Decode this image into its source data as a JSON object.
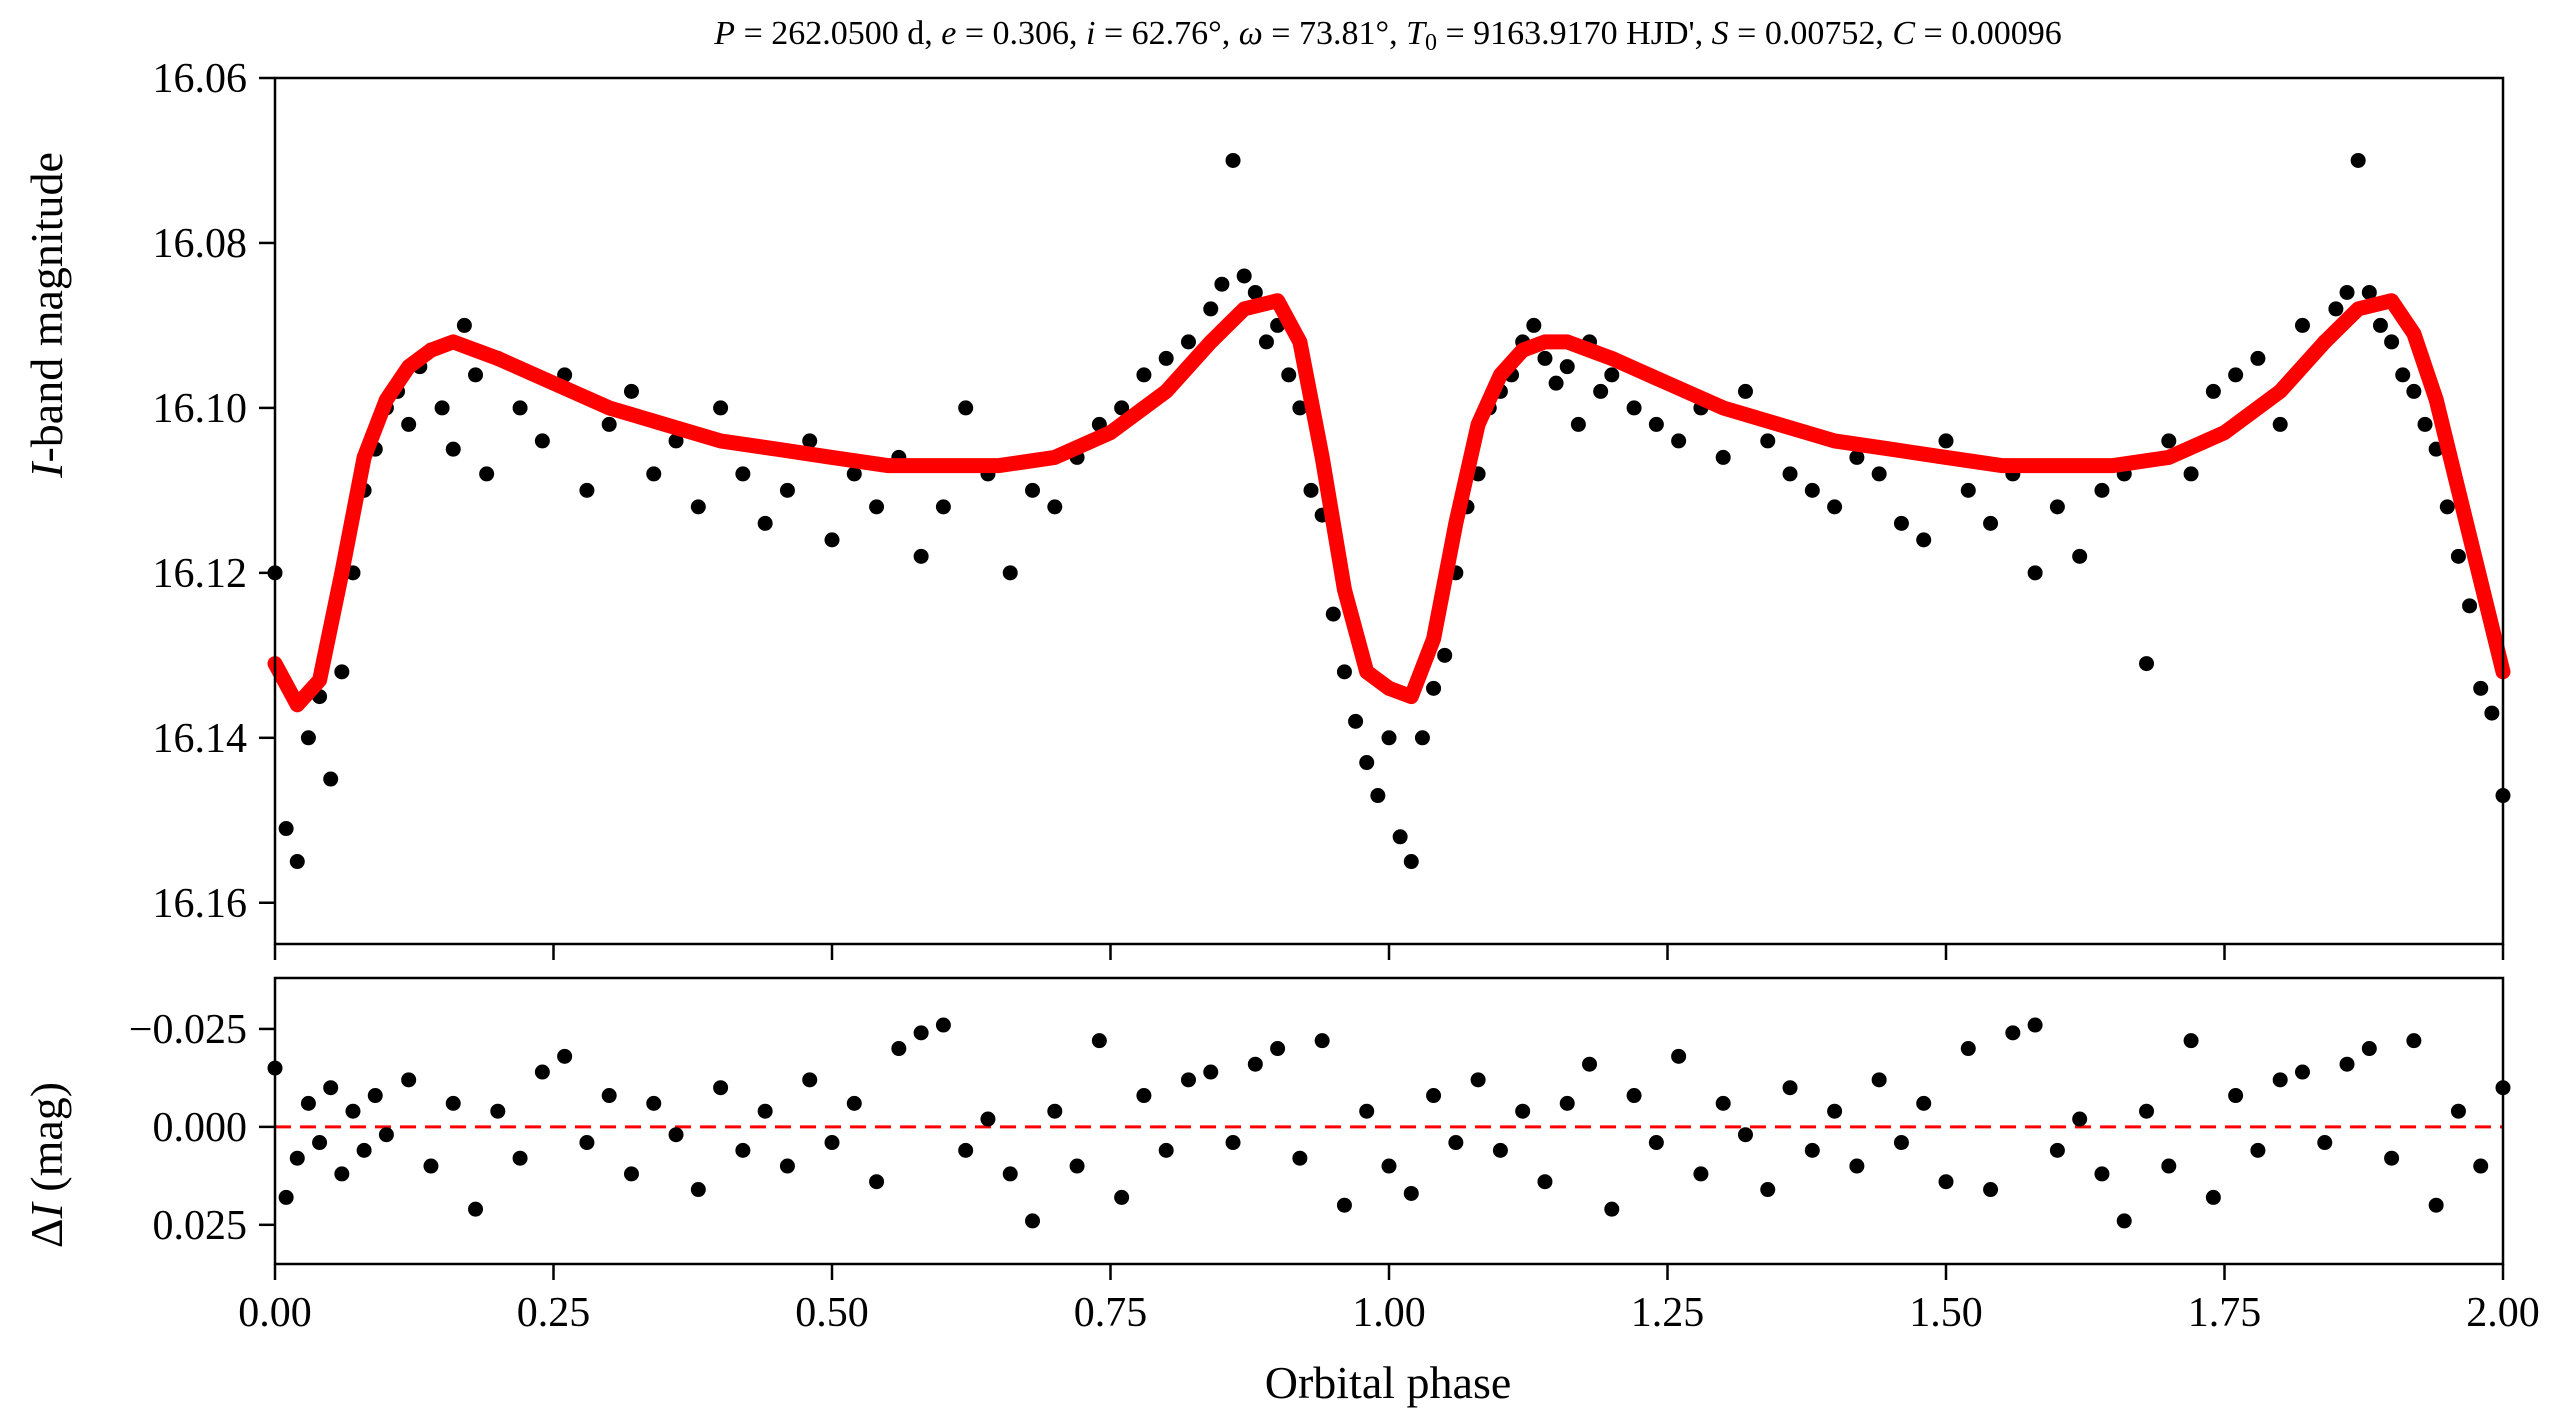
{
  "chart_data": [
    {
      "panel": "light-curve",
      "type": "scatter",
      "title": "P = 262.0500 d, e = 0.306, i = 62.76°, ω = 73.81°, T0 = 9163.9170 HJD', S = 0.00752, C = 0.00096",
      "title_parts": {
        "P": "P",
        "P_val": " = 262.0500 d, ",
        "e": "e",
        "e_val": " = 0.306, ",
        "i": "i",
        "i_val": " = 62.76°, ",
        "w": "ω",
        "w_val": " = 73.81°, ",
        "T": "T",
        "T_sub": "0",
        "T_val": " = 9163.9170 HJD', ",
        "S": "S",
        "S_val": " = 0.00752, ",
        "C": "C",
        "C_val": " = 0.00096"
      },
      "xlabel": "",
      "ylabel": "I-band magnitude",
      "ylabel_parts": {
        "italic": "I",
        "rest": "-band magnitude"
      },
      "xlim": [
        0,
        2
      ],
      "ylim": [
        16.165,
        16.06
      ],
      "y_inverted": true,
      "yticks": [
        "16.06",
        "16.08",
        "16.10",
        "16.12",
        "16.14",
        "16.16"
      ],
      "ytick_values": [
        16.06,
        16.08,
        16.1,
        16.12,
        16.14,
        16.16
      ],
      "grid": false,
      "series": [
        {
          "kind": "observations",
          "marker_color": "#000000",
          "x": [
            0.0,
            0.01,
            0.02,
            0.03,
            0.04,
            0.05,
            0.06,
            0.07,
            0.08,
            0.09,
            0.1,
            0.11,
            0.12,
            0.13,
            0.14,
            0.15,
            0.16,
            0.17,
            0.18,
            0.19,
            0.2,
            0.22,
            0.24,
            0.26,
            0.28,
            0.3,
            0.32,
            0.34,
            0.36,
            0.38,
            0.4,
            0.42,
            0.44,
            0.46,
            0.48,
            0.5,
            0.52,
            0.54,
            0.56,
            0.58,
            0.6,
            0.62,
            0.64,
            0.66,
            0.68,
            0.7,
            0.72,
            0.74,
            0.76,
            0.78,
            0.8,
            0.82,
            0.84,
            0.85,
            0.86,
            0.87,
            0.88,
            0.89,
            0.9,
            0.91,
            0.92,
            0.93,
            0.94,
            0.95,
            0.96,
            0.97,
            0.98,
            0.99,
            1.0,
            1.01,
            1.02,
            1.03,
            1.04,
            1.05,
            1.06,
            1.07,
            1.08,
            1.09,
            1.1,
            1.11,
            1.12,
            1.13,
            1.14,
            1.15,
            1.16,
            1.17,
            1.18,
            1.19,
            1.2,
            1.22,
            1.24,
            1.26,
            1.28,
            1.3,
            1.32,
            1.34,
            1.36,
            1.38,
            1.4,
            1.42,
            1.44,
            1.46,
            1.48,
            1.5,
            1.52,
            1.54,
            1.56,
            1.58,
            1.6,
            1.62,
            1.64,
            1.66,
            1.68,
            1.7,
            1.72,
            1.74,
            1.76,
            1.78,
            1.8,
            1.82,
            1.84,
            1.85,
            1.86,
            1.87,
            1.88,
            1.89,
            1.9,
            1.91,
            1.92,
            1.93,
            1.94,
            1.95,
            1.96,
            1.97,
            1.98,
            1.99,
            2.0
          ],
          "y": [
            16.12,
            16.151,
            16.155,
            16.14,
            16.135,
            16.145,
            16.132,
            16.12,
            16.11,
            16.105,
            16.1,
            16.098,
            16.102,
            16.095,
            16.093,
            16.1,
            16.105,
            16.09,
            16.096,
            16.108,
            16.094,
            16.1,
            16.104,
            16.096,
            16.11,
            16.102,
            16.098,
            16.108,
            16.104,
            16.112,
            16.1,
            16.108,
            16.114,
            16.11,
            16.104,
            16.116,
            16.108,
            16.112,
            16.106,
            16.118,
            16.112,
            16.1,
            16.108,
            16.12,
            16.11,
            16.112,
            16.106,
            16.102,
            16.1,
            16.096,
            16.094,
            16.092,
            16.088,
            16.085,
            16.07,
            16.084,
            16.086,
            16.092,
            16.09,
            16.096,
            16.1,
            16.11,
            16.113,
            16.125,
            16.132,
            16.138,
            16.143,
            16.147,
            16.14,
            16.152,
            16.155,
            16.14,
            16.134,
            16.13,
            16.12,
            16.112,
            16.108,
            16.1,
            16.098,
            16.096,
            16.092,
            16.09,
            16.094,
            16.097,
            16.095,
            16.102,
            16.092,
            16.098,
            16.096,
            16.1,
            16.102,
            16.104,
            16.1,
            16.106,
            16.098,
            16.104,
            16.108,
            16.11,
            16.112,
            16.106,
            16.108,
            16.114,
            16.116,
            16.104,
            16.11,
            16.114,
            16.108,
            16.12,
            16.112,
            16.118,
            16.11,
            16.108,
            16.131,
            16.104,
            16.108,
            16.098,
            16.096,
            16.094,
            16.102,
            16.09,
            16.092,
            16.088,
            16.086,
            16.07,
            16.086,
            16.09,
            16.092,
            16.096,
            16.098,
            16.102,
            16.105,
            16.112,
            16.118,
            16.124,
            16.134,
            16.137,
            16.147
          ]
        },
        {
          "kind": "model",
          "line_color": "#ff0000",
          "x": [
            0.0,
            0.02,
            0.04,
            0.06,
            0.08,
            0.1,
            0.12,
            0.14,
            0.16,
            0.18,
            0.2,
            0.25,
            0.3,
            0.35,
            0.4,
            0.45,
            0.5,
            0.55,
            0.6,
            0.65,
            0.7,
            0.75,
            0.8,
            0.84,
            0.87,
            0.9,
            0.92,
            0.94,
            0.96,
            0.98,
            1.0,
            1.02,
            1.04,
            1.06,
            1.08,
            1.1,
            1.12,
            1.14,
            1.16,
            1.18,
            1.2,
            1.25,
            1.3,
            1.35,
            1.4,
            1.45,
            1.5,
            1.55,
            1.6,
            1.65,
            1.7,
            1.75,
            1.8,
            1.84,
            1.87,
            1.9,
            1.92,
            1.94,
            1.96,
            1.98,
            2.0
          ],
          "y": [
            16.131,
            16.136,
            16.133,
            16.12,
            16.106,
            16.099,
            16.095,
            16.093,
            16.092,
            16.093,
            16.094,
            16.097,
            16.1,
            16.102,
            16.104,
            16.105,
            16.106,
            16.107,
            16.107,
            16.107,
            16.106,
            16.103,
            16.098,
            16.092,
            16.088,
            16.087,
            16.092,
            16.106,
            16.122,
            16.132,
            16.134,
            16.135,
            16.128,
            16.114,
            16.102,
            16.096,
            16.093,
            16.092,
            16.092,
            16.093,
            16.094,
            16.097,
            16.1,
            16.102,
            16.104,
            16.105,
            16.106,
            16.107,
            16.107,
            16.107,
            16.106,
            16.103,
            16.098,
            16.092,
            16.088,
            16.087,
            16.091,
            16.099,
            16.11,
            16.121,
            16.132
          ]
        }
      ]
    },
    {
      "panel": "residuals",
      "type": "scatter",
      "xlabel": "Orbital phase",
      "ylabel": "ΔI (mag)",
      "ylabel_parts": {
        "delta": "Δ",
        "italic": "I",
        "rest": " (mag)"
      },
      "xlim": [
        0,
        2
      ],
      "ylim": [
        0.035,
        -0.038
      ],
      "y_inverted": true,
      "xticks": [
        "0.00",
        "0.25",
        "0.50",
        "0.75",
        "1.00",
        "1.25",
        "1.50",
        "1.75",
        "2.00"
      ],
      "xtick_values": [
        0,
        0.25,
        0.5,
        0.75,
        1.0,
        1.25,
        1.5,
        1.75,
        2.0
      ],
      "yticks": [
        "−0.025",
        "0.000",
        "0.025"
      ],
      "ytick_values": [
        -0.025,
        0.0,
        0.025
      ],
      "grid": false,
      "reference_line": {
        "y": 0.0,
        "color": "#ff0000",
        "style": "dashed"
      },
      "series": [
        {
          "kind": "residuals",
          "marker_color": "#000000",
          "x": [
            0.0,
            0.01,
            0.02,
            0.03,
            0.04,
            0.05,
            0.06,
            0.07,
            0.08,
            0.09,
            0.1,
            0.12,
            0.14,
            0.16,
            0.18,
            0.2,
            0.22,
            0.24,
            0.26,
            0.28,
            0.3,
            0.32,
            0.34,
            0.36,
            0.38,
            0.4,
            0.42,
            0.44,
            0.46,
            0.48,
            0.5,
            0.52,
            0.54,
            0.56,
            0.58,
            0.6,
            0.62,
            0.64,
            0.66,
            0.68,
            0.7,
            0.72,
            0.74,
            0.76,
            0.78,
            0.8,
            0.82,
            0.84,
            0.86,
            0.88,
            0.9,
            0.92,
            0.94,
            0.96,
            0.98,
            1.0,
            1.02,
            1.04,
            1.06,
            1.08,
            1.1,
            1.12,
            1.14,
            1.16,
            1.18,
            1.2,
            1.22,
            1.24,
            1.26,
            1.28,
            1.3,
            1.32,
            1.34,
            1.36,
            1.38,
            1.4,
            1.42,
            1.44,
            1.46,
            1.48,
            1.5,
            1.52,
            1.54,
            1.56,
            1.58,
            1.6,
            1.62,
            1.64,
            1.66,
            1.68,
            1.7,
            1.72,
            1.74,
            1.76,
            1.78,
            1.8,
            1.82,
            1.84,
            1.86,
            1.88,
            1.9,
            1.92,
            1.94,
            1.96,
            1.98,
            2.0
          ],
          "y": [
            -0.015,
            0.018,
            0.008,
            -0.006,
            0.004,
            -0.01,
            0.012,
            -0.004,
            0.006,
            -0.008,
            0.002,
            -0.012,
            0.01,
            -0.006,
            0.021,
            -0.004,
            0.008,
            -0.014,
            -0.018,
            0.004,
            -0.008,
            0.012,
            -0.006,
            0.002,
            0.016,
            -0.01,
            0.006,
            -0.004,
            0.01,
            -0.012,
            0.004,
            -0.006,
            0.014,
            -0.02,
            -0.024,
            -0.026,
            0.006,
            -0.002,
            0.012,
            0.024,
            -0.004,
            0.01,
            -0.022,
            0.018,
            -0.008,
            0.006,
            -0.012,
            -0.014,
            0.004,
            -0.016,
            -0.02,
            0.008,
            -0.022,
            0.02,
            -0.004,
            0.01,
            0.017,
            -0.008,
            0.004,
            -0.012,
            0.006,
            -0.004,
            0.014,
            -0.006,
            -0.016,
            0.021,
            -0.008,
            0.004,
            -0.018,
            0.012,
            -0.006,
            0.002,
            0.016,
            -0.01,
            0.006,
            -0.004,
            0.01,
            -0.012,
            0.004,
            -0.006,
            0.014,
            -0.02,
            0.016,
            -0.024,
            -0.026,
            0.006,
            -0.002,
            0.012,
            0.024,
            -0.004,
            0.01,
            -0.022,
            0.018,
            -0.008,
            0.006,
            -0.012,
            -0.014,
            0.004,
            -0.016,
            -0.02,
            0.008,
            -0.022,
            0.02,
            -0.004,
            0.01,
            -0.01
          ]
        }
      ]
    }
  ]
}
